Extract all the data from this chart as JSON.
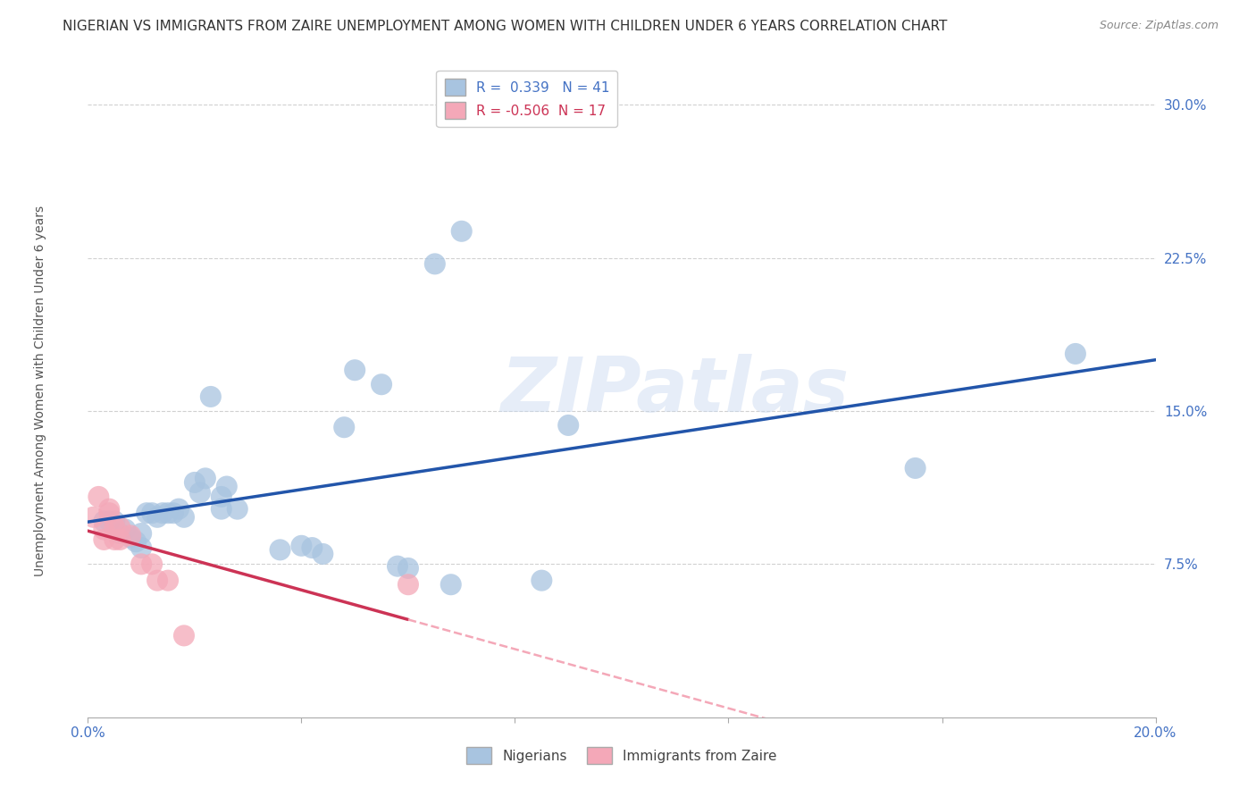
{
  "title": "NIGERIAN VS IMMIGRANTS FROM ZAIRE UNEMPLOYMENT AMONG WOMEN WITH CHILDREN UNDER 6 YEARS CORRELATION CHART",
  "source": "Source: ZipAtlas.com",
  "ylabel": "Unemployment Among Women with Children Under 6 years",
  "xlim": [
    0.0,
    0.2
  ],
  "ylim": [
    0.0,
    0.32
  ],
  "ytick_positions": [
    0.075,
    0.15,
    0.225,
    0.3
  ],
  "yticklabels": [
    "7.5%",
    "15.0%",
    "22.5%",
    "30.0%"
  ],
  "xtick_positions": [
    0.0,
    0.04,
    0.08,
    0.12,
    0.16,
    0.2
  ],
  "xticklabels": [
    "0.0%",
    "",
    "",
    "",
    "",
    "20.0%"
  ],
  "nigerian_R": 0.339,
  "nigerian_N": 41,
  "zaire_R": -0.506,
  "zaire_N": 17,
  "nigerian_color": "#a8c4e0",
  "zaire_color": "#f4a8b8",
  "nigerian_line_color": "#2255aa",
  "zaire_line_color": "#cc3355",
  "zaire_dash_color": "#f4a8b8",
  "watermark": "ZIPatlas",
  "nigerian_points": [
    [
      0.003,
      0.096
    ],
    [
      0.004,
      0.096
    ],
    [
      0.005,
      0.096
    ],
    [
      0.006,
      0.09
    ],
    [
      0.007,
      0.092
    ],
    [
      0.008,
      0.088
    ],
    [
      0.009,
      0.086
    ],
    [
      0.01,
      0.083
    ],
    [
      0.01,
      0.09
    ],
    [
      0.011,
      0.1
    ],
    [
      0.012,
      0.1
    ],
    [
      0.013,
      0.098
    ],
    [
      0.014,
      0.1
    ],
    [
      0.015,
      0.1
    ],
    [
      0.016,
      0.1
    ],
    [
      0.017,
      0.102
    ],
    [
      0.018,
      0.098
    ],
    [
      0.02,
      0.115
    ],
    [
      0.021,
      0.11
    ],
    [
      0.022,
      0.117
    ],
    [
      0.023,
      0.157
    ],
    [
      0.025,
      0.108
    ],
    [
      0.025,
      0.102
    ],
    [
      0.026,
      0.113
    ],
    [
      0.028,
      0.102
    ],
    [
      0.036,
      0.082
    ],
    [
      0.04,
      0.084
    ],
    [
      0.042,
      0.083
    ],
    [
      0.044,
      0.08
    ],
    [
      0.048,
      0.142
    ],
    [
      0.05,
      0.17
    ],
    [
      0.055,
      0.163
    ],
    [
      0.058,
      0.074
    ],
    [
      0.06,
      0.073
    ],
    [
      0.065,
      0.222
    ],
    [
      0.068,
      0.065
    ],
    [
      0.07,
      0.238
    ],
    [
      0.085,
      0.067
    ],
    [
      0.09,
      0.143
    ],
    [
      0.155,
      0.122
    ],
    [
      0.185,
      0.178
    ]
  ],
  "zaire_points": [
    [
      0.001,
      0.098
    ],
    [
      0.002,
      0.108
    ],
    [
      0.003,
      0.092
    ],
    [
      0.003,
      0.087
    ],
    [
      0.004,
      0.102
    ],
    [
      0.004,
      0.1
    ],
    [
      0.005,
      0.093
    ],
    [
      0.005,
      0.087
    ],
    [
      0.006,
      0.087
    ],
    [
      0.006,
      0.093
    ],
    [
      0.008,
      0.089
    ],
    [
      0.01,
      0.075
    ],
    [
      0.012,
      0.075
    ],
    [
      0.013,
      0.067
    ],
    [
      0.015,
      0.067
    ],
    [
      0.018,
      0.04
    ],
    [
      0.06,
      0.065
    ]
  ],
  "background_color": "#ffffff",
  "grid_color": "#cccccc",
  "title_fontsize": 11,
  "ylabel_fontsize": 10,
  "tick_fontsize": 11,
  "legend_fontsize": 11,
  "source_fontsize": 9
}
